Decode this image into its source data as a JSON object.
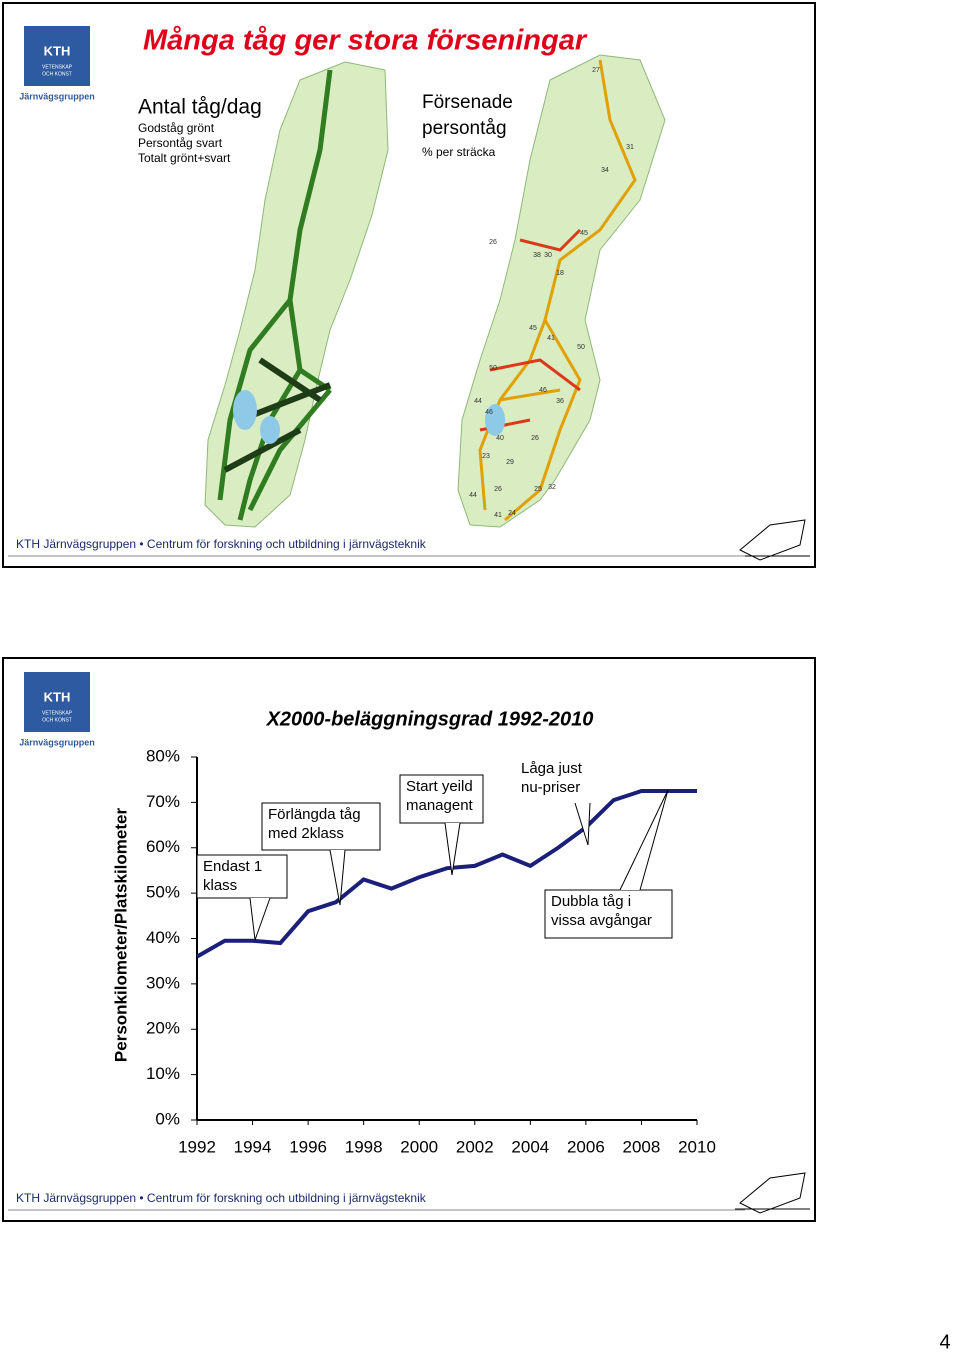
{
  "slides": [
    {
      "logo": {
        "name": "KTH",
        "motto": [
          "VETENSKAP",
          "OCH KONST"
        ],
        "group": "Järnvägsgruppen"
      },
      "title": "Många tåg ger stora förseningar",
      "left_legend": {
        "heading": "Antal tåg/dag",
        "lines": [
          "Godståg grönt",
          "Persontåg svart",
          "Totalt grönt+svart"
        ]
      },
      "right_legend": {
        "heading": [
          "Försenade",
          "persontåg"
        ],
        "note": "% per sträcka"
      },
      "map_labels": [
        27,
        31,
        34,
        26,
        45,
        38,
        30,
        18,
        45,
        41,
        50,
        50,
        46,
        36,
        44,
        46,
        26,
        40,
        29,
        23,
        25,
        32,
        26,
        41,
        24,
        44
      ],
      "footer": "KTH Järnvägsgruppen • Centrum för forskning och utbildning i järnvägsteknik"
    },
    {
      "logo": {
        "name": "KTH",
        "motto": [
          "VETENSKAP",
          "OCH KONST"
        ],
        "group": "Järnvägsgruppen"
      },
      "footer": "KTH Järnvägsgruppen • Centrum för forskning och utbildning i järnvägsteknik"
    }
  ],
  "chart_data": {
    "type": "line",
    "title": "X2000-beläggningsgrad 1992-2010",
    "y_label": "Personkilometer/Platskilometer",
    "x": [
      1992,
      1993,
      1994,
      1995,
      1996,
      1997,
      1998,
      1999,
      2000,
      2001,
      2002,
      2003,
      2004,
      2005,
      2006,
      2007,
      2008,
      2009,
      2010
    ],
    "xlim": [
      1992,
      2010
    ],
    "xticks": [
      1992,
      1994,
      1996,
      1998,
      2000,
      2002,
      2004,
      2006,
      2008,
      2010
    ],
    "ylim": [
      0,
      80
    ],
    "yticks": [
      {
        "value": 0,
        "label": "0%"
      },
      {
        "value": 10,
        "label": "10%"
      },
      {
        "value": 20,
        "label": "20%"
      },
      {
        "value": 30,
        "label": "30%"
      },
      {
        "value": 40,
        "label": "40%"
      },
      {
        "value": 50,
        "label": "50%"
      },
      {
        "value": 60,
        "label": "60%"
      },
      {
        "value": 70,
        "label": "70%"
      },
      {
        "value": 80,
        "label": "80%"
      }
    ],
    "series": [
      {
        "color": "#1a1f7a",
        "values": [
          36,
          39.5,
          39.5,
          39,
          46,
          48,
          53,
          51,
          53.5,
          55.5,
          56,
          58.5,
          56,
          60,
          64.5,
          70.5,
          72.5,
          72.5,
          72.5
        ]
      }
    ],
    "annotations": [
      {
        "lines": [
          "Endast 1",
          "klass"
        ]
      },
      {
        "lines": [
          "Förlängda tåg",
          "med 2klass"
        ]
      },
      {
        "lines": [
          "Start yeild",
          "managent"
        ]
      },
      {
        "lines": [
          "Låga just",
          "nu-priser"
        ]
      },
      {
        "lines": [
          "Dubbla tåg i",
          "vissa avgångar"
        ]
      }
    ]
  },
  "page_number": "4"
}
